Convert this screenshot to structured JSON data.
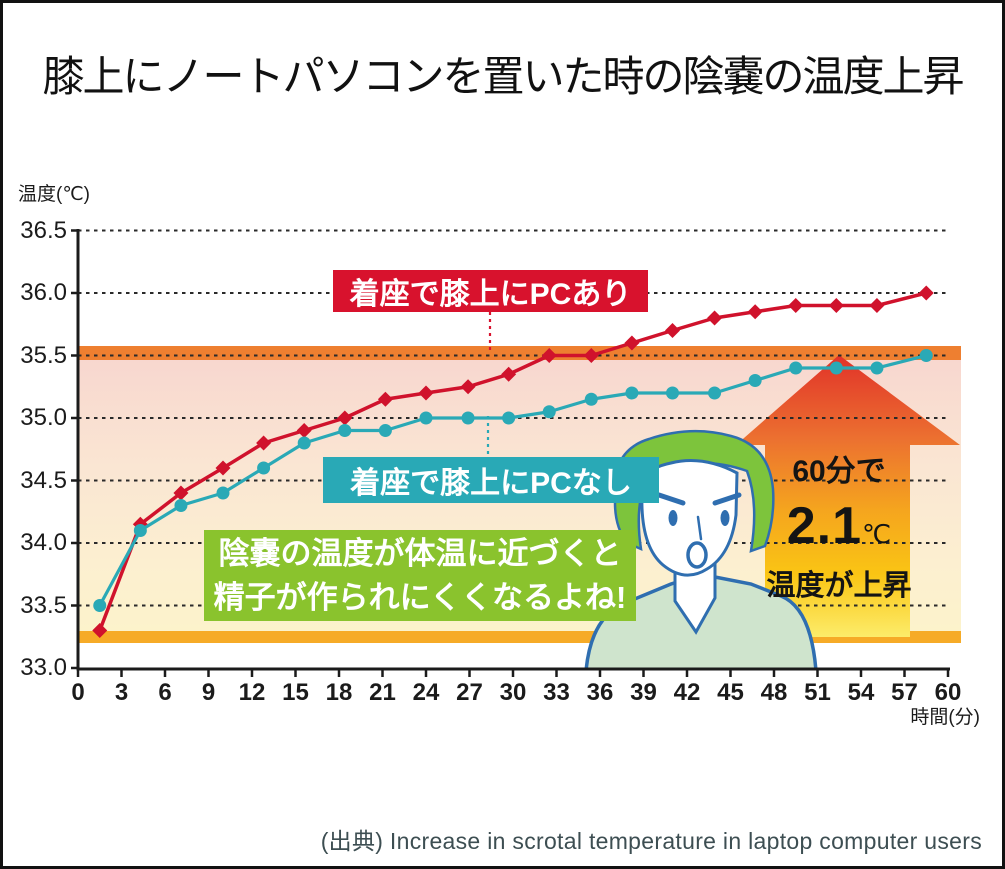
{
  "title": "膝上にノートパソコンを置いた時の陰嚢の温度上昇",
  "y_axis": {
    "label": "温度(℃)"
  },
  "x_axis": {
    "label": "時間(分)"
  },
  "chart_data": {
    "type": "line",
    "title": "膝上にノートパソコンを置いた時の陰嚢の温度上昇",
    "xlabel": "時間(分)",
    "ylabel": "温度(℃)",
    "xlim": [
      0,
      60
    ],
    "ylim": [
      33.0,
      36.5
    ],
    "xticks": [
      0,
      3,
      6,
      9,
      12,
      15,
      18,
      21,
      24,
      27,
      30,
      33,
      36,
      39,
      42,
      45,
      48,
      51,
      54,
      57,
      60
    ],
    "yticks": [
      36.5,
      36.0,
      35.5,
      35.0,
      34.5,
      34.0,
      33.5,
      33.0
    ],
    "grid": "horizontal-dotted",
    "x_minutes": [
      1.5,
      4.3,
      7.1,
      10,
      12.8,
      15.6,
      18.4,
      21.2,
      24,
      26.9,
      29.7,
      32.5,
      35.4,
      38.2,
      41,
      43.9,
      46.7,
      49.5,
      52.3,
      55.1,
      58.5
    ],
    "series": [
      {
        "name": "着座で膝上にPCあり",
        "color": "#d0122c",
        "marker": "diamond",
        "values": [
          33.3,
          34.15,
          34.4,
          34.6,
          34.8,
          34.9,
          35.0,
          35.15,
          35.2,
          35.25,
          35.35,
          35.5,
          35.5,
          35.6,
          35.7,
          35.8,
          35.85,
          35.9,
          35.9,
          35.9,
          36.0
        ]
      },
      {
        "name": "着座で膝上にPCなし",
        "color": "#2aa9b6",
        "marker": "circle",
        "values": [
          33.5,
          34.1,
          34.3,
          34.4,
          34.6,
          34.8,
          34.9,
          34.9,
          35.0,
          35.0,
          35.0,
          35.05,
          35.15,
          35.2,
          35.2,
          35.2,
          35.3,
          35.4,
          35.4,
          35.4,
          35.5
        ]
      }
    ],
    "highlight_bands": [
      {
        "y": 35.5,
        "color": "#ee7f30"
      },
      {
        "y": 33.3,
        "color": "#f6ab27"
      }
    ]
  },
  "labels": {
    "pc_on": "着座で膝上にPCあり",
    "pc_off": "着座で膝上にPCなし",
    "callout_line1": "陰嚢の温度が体温に近づくと",
    "callout_line2": "精子が作られにくくなるよね!"
  },
  "arrow": {
    "line1": "60分で",
    "value": "2.1",
    "unit": "℃",
    "line2": "温度が上昇"
  },
  "source": "(出典) Increase in scrotal temperature in laptop computer users",
  "colors": {
    "series_pc_on": "#d0122c",
    "series_pc_off": "#2aa9b6",
    "band_top": "#ee7f30",
    "band_bottom": "#f6ab27",
    "callout_green": "#8ac32d",
    "label_red_box": "#d8122d",
    "label_teal_box": "#29a9b6"
  }
}
